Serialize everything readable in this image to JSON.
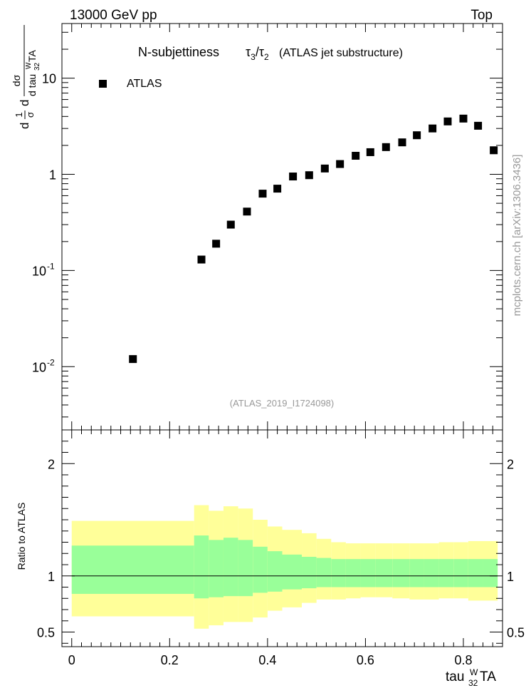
{
  "header": {
    "left": "13000 GeV pp",
    "right": "Top",
    "title_main": "N-subjettiness",
    "title_suffix": "(ATLAS jet substructure)",
    "analysis": "(ATLAS_2019_I1724098)",
    "watermark": "mcplots.cern.ch [arXiv:1306.3436]"
  },
  "legend": {
    "label": "ATLAS"
  },
  "ratio": {
    "ylabel": "Ratio to ATLAS"
  },
  "colors": {
    "band_inner": "#99ff99",
    "band_outer": "#ffff99",
    "marker": "#000000"
  },
  "chart_data": [
    {
      "type": "scatter",
      "yscale": "log",
      "xlim": [
        -0.02,
        0.88
      ],
      "ylim": [
        0.0022,
        37
      ],
      "xticks": [
        0,
        0.2,
        0.4,
        0.6,
        0.8
      ],
      "legend_placement": "top-left",
      "series": [
        {
          "name": "ATLAS",
          "x": [
            0.125,
            0.265,
            0.295,
            0.325,
            0.358,
            0.39,
            0.42,
            0.452,
            0.485,
            0.517,
            0.548,
            0.58,
            0.61,
            0.642,
            0.675,
            0.705,
            0.737,
            0.768,
            0.8,
            0.83,
            0.862
          ],
          "y": [
            0.012,
            0.13,
            0.19,
            0.3,
            0.41,
            0.63,
            0.71,
            0.95,
            0.98,
            1.15,
            1.28,
            1.56,
            1.7,
            1.92,
            2.15,
            2.55,
            3.0,
            3.55,
            3.8,
            3.2,
            1.78
          ]
        }
      ]
    },
    {
      "type": "area",
      "xlim": [
        -0.02,
        0.88
      ],
      "ylim": [
        0.37,
        2.3
      ],
      "yticks": [
        0.5,
        1,
        2
      ],
      "reference_line": 1,
      "bins": [
        {
          "x0": 0.0,
          "x1": 0.25,
          "inner_lo": 0.84,
          "inner_hi": 1.27,
          "outer_lo": 0.64,
          "outer_hi": 1.49
        },
        {
          "x0": 0.25,
          "x1": 0.28,
          "inner_lo": 0.8,
          "inner_hi": 1.36,
          "outer_lo": 0.53,
          "outer_hi": 1.63
        },
        {
          "x0": 0.28,
          "x1": 0.31,
          "inner_lo": 0.81,
          "inner_hi": 1.32,
          "outer_lo": 0.56,
          "outer_hi": 1.58
        },
        {
          "x0": 0.31,
          "x1": 0.34,
          "inner_lo": 0.82,
          "inner_hi": 1.34,
          "outer_lo": 0.59,
          "outer_hi": 1.62
        },
        {
          "x0": 0.34,
          "x1": 0.37,
          "inner_lo": 0.82,
          "inner_hi": 1.32,
          "outer_lo": 0.59,
          "outer_hi": 1.6
        },
        {
          "x0": 0.37,
          "x1": 0.4,
          "inner_lo": 0.85,
          "inner_hi": 1.26,
          "outer_lo": 0.63,
          "outer_hi": 1.5
        },
        {
          "x0": 0.4,
          "x1": 0.43,
          "inner_lo": 0.86,
          "inner_hi": 1.22,
          "outer_lo": 0.69,
          "outer_hi": 1.44
        },
        {
          "x0": 0.43,
          "x1": 0.47,
          "inner_lo": 0.88,
          "inner_hi": 1.19,
          "outer_lo": 0.72,
          "outer_hi": 1.41
        },
        {
          "x0": 0.47,
          "x1": 0.5,
          "inner_lo": 0.89,
          "inner_hi": 1.17,
          "outer_lo": 0.76,
          "outer_hi": 1.38
        },
        {
          "x0": 0.5,
          "x1": 0.53,
          "inner_lo": 0.9,
          "inner_hi": 1.16,
          "outer_lo": 0.79,
          "outer_hi": 1.33
        },
        {
          "x0": 0.53,
          "x1": 0.56,
          "inner_lo": 0.9,
          "inner_hi": 1.15,
          "outer_lo": 0.79,
          "outer_hi": 1.3
        },
        {
          "x0": 0.56,
          "x1": 0.59,
          "inner_lo": 0.9,
          "inner_hi": 1.15,
          "outer_lo": 0.8,
          "outer_hi": 1.29
        },
        {
          "x0": 0.59,
          "x1": 0.62,
          "inner_lo": 0.9,
          "inner_hi": 1.15,
          "outer_lo": 0.81,
          "outer_hi": 1.29
        },
        {
          "x0": 0.62,
          "x1": 0.655,
          "inner_lo": 0.9,
          "inner_hi": 1.15,
          "outer_lo": 0.81,
          "outer_hi": 1.29
        },
        {
          "x0": 0.655,
          "x1": 0.69,
          "inner_lo": 0.9,
          "inner_hi": 1.15,
          "outer_lo": 0.8,
          "outer_hi": 1.29
        },
        {
          "x0": 0.69,
          "x1": 0.72,
          "inner_lo": 0.9,
          "inner_hi": 1.15,
          "outer_lo": 0.79,
          "outer_hi": 1.29
        },
        {
          "x0": 0.72,
          "x1": 0.75,
          "inner_lo": 0.9,
          "inner_hi": 1.15,
          "outer_lo": 0.79,
          "outer_hi": 1.29
        },
        {
          "x0": 0.75,
          "x1": 0.78,
          "inner_lo": 0.9,
          "inner_hi": 1.15,
          "outer_lo": 0.8,
          "outer_hi": 1.3
        },
        {
          "x0": 0.78,
          "x1": 0.81,
          "inner_lo": 0.9,
          "inner_hi": 1.15,
          "outer_lo": 0.8,
          "outer_hi": 1.3
        },
        {
          "x0": 0.81,
          "x1": 0.84,
          "inner_lo": 0.9,
          "inner_hi": 1.15,
          "outer_lo": 0.78,
          "outer_hi": 1.31
        },
        {
          "x0": 0.84,
          "x1": 0.87,
          "inner_lo": 0.9,
          "inner_hi": 1.15,
          "outer_lo": 0.78,
          "outer_hi": 1.31
        }
      ]
    }
  ]
}
